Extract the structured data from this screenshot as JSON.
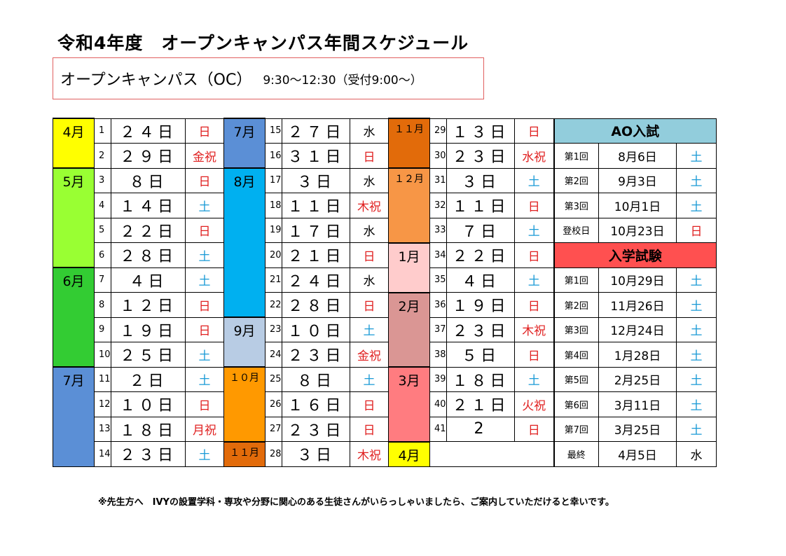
{
  "title": "令和4年度　オープンキャンパス年間スケジュール",
  "oc_box": {
    "label": "オープンキャンパス（OC）",
    "time": "9:30～12:30（受付9:00～）"
  },
  "months": [
    {
      "label": "4月",
      "color": "#ffff00"
    },
    {
      "label": "5月",
      "color": "#99ff33"
    },
    {
      "label": "6月",
      "color": "#33cc33"
    },
    {
      "label": "7月",
      "color": "#5b8fd6"
    },
    {
      "label": "7月",
      "color": "#5b8fd6"
    },
    {
      "label": "8月",
      "color": "#00b0f0"
    },
    {
      "label": "9月",
      "color": "#b8cce4"
    },
    {
      "label": "１０月",
      "color": "#ff9900"
    },
    {
      "label": "１１月",
      "color": "#e26b0a"
    },
    {
      "label": "１１月",
      "color": "#e26b0a"
    },
    {
      "label": "１２月",
      "color": "#f79646"
    },
    {
      "label": "1月",
      "color": "#ffcccc"
    },
    {
      "label": "2月",
      "color": "#da9694"
    },
    {
      "label": "3月",
      "color": "#ff7c80"
    },
    {
      "label": "4月",
      "color": "#ffff00"
    }
  ],
  "sessions": [
    {
      "no": "1",
      "date": "２４日",
      "day": "日"
    },
    {
      "no": "2",
      "date": "２９日",
      "day": "金祝"
    },
    {
      "no": "3",
      "date": "８日",
      "day": "日"
    },
    {
      "no": "4",
      "date": "１４日",
      "day": "土"
    },
    {
      "no": "5",
      "date": "２２日",
      "day": "日"
    },
    {
      "no": "6",
      "date": "２８日",
      "day": "土"
    },
    {
      "no": "7",
      "date": "４日",
      "day": "土"
    },
    {
      "no": "8",
      "date": "１２日",
      "day": "日"
    },
    {
      "no": "9",
      "date": "１９日",
      "day": "日"
    },
    {
      "no": "10",
      "date": "２５日",
      "day": "土"
    },
    {
      "no": "11",
      "date": "２日",
      "day": "土"
    },
    {
      "no": "12",
      "date": "１０日",
      "day": "日"
    },
    {
      "no": "13",
      "date": "１８日",
      "day": "月祝"
    },
    {
      "no": "14",
      "date": "２３日",
      "day": "土"
    },
    {
      "no": "15",
      "date": "２７日",
      "day": "水"
    },
    {
      "no": "16",
      "date": "３１日",
      "day": "日"
    },
    {
      "no": "17",
      "date": "３日",
      "day": "水"
    },
    {
      "no": "18",
      "date": "１１日",
      "day": "木祝"
    },
    {
      "no": "19",
      "date": "１７日",
      "day": "水"
    },
    {
      "no": "20",
      "date": "２１日",
      "day": "日"
    },
    {
      "no": "21",
      "date": "２４日",
      "day": "水"
    },
    {
      "no": "22",
      "date": "２８日",
      "day": "日"
    },
    {
      "no": "23",
      "date": "１０日",
      "day": "土"
    },
    {
      "no": "24",
      "date": "２３日",
      "day": "金祝"
    },
    {
      "no": "25",
      "date": "８日",
      "day": "土"
    },
    {
      "no": "26",
      "date": "１６日",
      "day": "日"
    },
    {
      "no": "27",
      "date": "２３日",
      "day": "日"
    },
    {
      "no": "28",
      "date": "３日",
      "day": "木祝"
    },
    {
      "no": "29",
      "date": "１３日",
      "day": "日"
    },
    {
      "no": "30",
      "date": "２３日",
      "day": "水祝"
    },
    {
      "no": "31",
      "date": "３日",
      "day": "土"
    },
    {
      "no": "32",
      "date": "１１日",
      "day": "日"
    },
    {
      "no": "33",
      "date": "７日",
      "day": "土"
    },
    {
      "no": "34",
      "date": "２２日",
      "day": "日"
    },
    {
      "no": "35",
      "date": "４日",
      "day": "土"
    },
    {
      "no": "36",
      "date": "１９日",
      "day": "日"
    },
    {
      "no": "37",
      "date": "２３日",
      "day": "木祝"
    },
    {
      "no": "38",
      "date": "５日",
      "day": "日"
    },
    {
      "no": "39",
      "date": "１８日",
      "day": "土"
    },
    {
      "no": "40",
      "date": "２１日",
      "day": "火祝"
    },
    {
      "no": "41",
      "date": "2",
      "day": "日"
    }
  ],
  "ao": {
    "header": "AO入試",
    "header_color": "#92cddc",
    "rows": [
      {
        "label": "第1回",
        "date": "8月6日",
        "day": "土"
      },
      {
        "label": "第2回",
        "date": "9月3日",
        "day": "土"
      },
      {
        "label": "第3回",
        "date": "10月1日",
        "day": "土"
      },
      {
        "label": "登校日",
        "date": "10月23日",
        "day": "日"
      }
    ]
  },
  "exam": {
    "header": "入学試験",
    "header_color": "#ff5050",
    "rows": [
      {
        "label": "第1回",
        "date": "10月29日",
        "day": "土"
      },
      {
        "label": "第2回",
        "date": "11月26日",
        "day": "土"
      },
      {
        "label": "第3回",
        "date": "12月24日",
        "day": "土"
      },
      {
        "label": "第4回",
        "date": "1月28日",
        "day": "土"
      },
      {
        "label": "第5回",
        "date": "2月25日",
        "day": "土"
      },
      {
        "label": "第6回",
        "date": "3月11日",
        "day": "土"
      },
      {
        "label": "第7回",
        "date": "3月25日",
        "day": "土"
      },
      {
        "label": "最終",
        "date": "4月5日",
        "day": "水"
      }
    ]
  },
  "note": "※先生方へ　IVYの設置学科・専攻や分野に関心のある生徒さんがいらっしゃいましたら、ご案内していただけると幸いです。",
  "colors": {
    "red": "#e02020",
    "blue": "#1a9ad6"
  }
}
